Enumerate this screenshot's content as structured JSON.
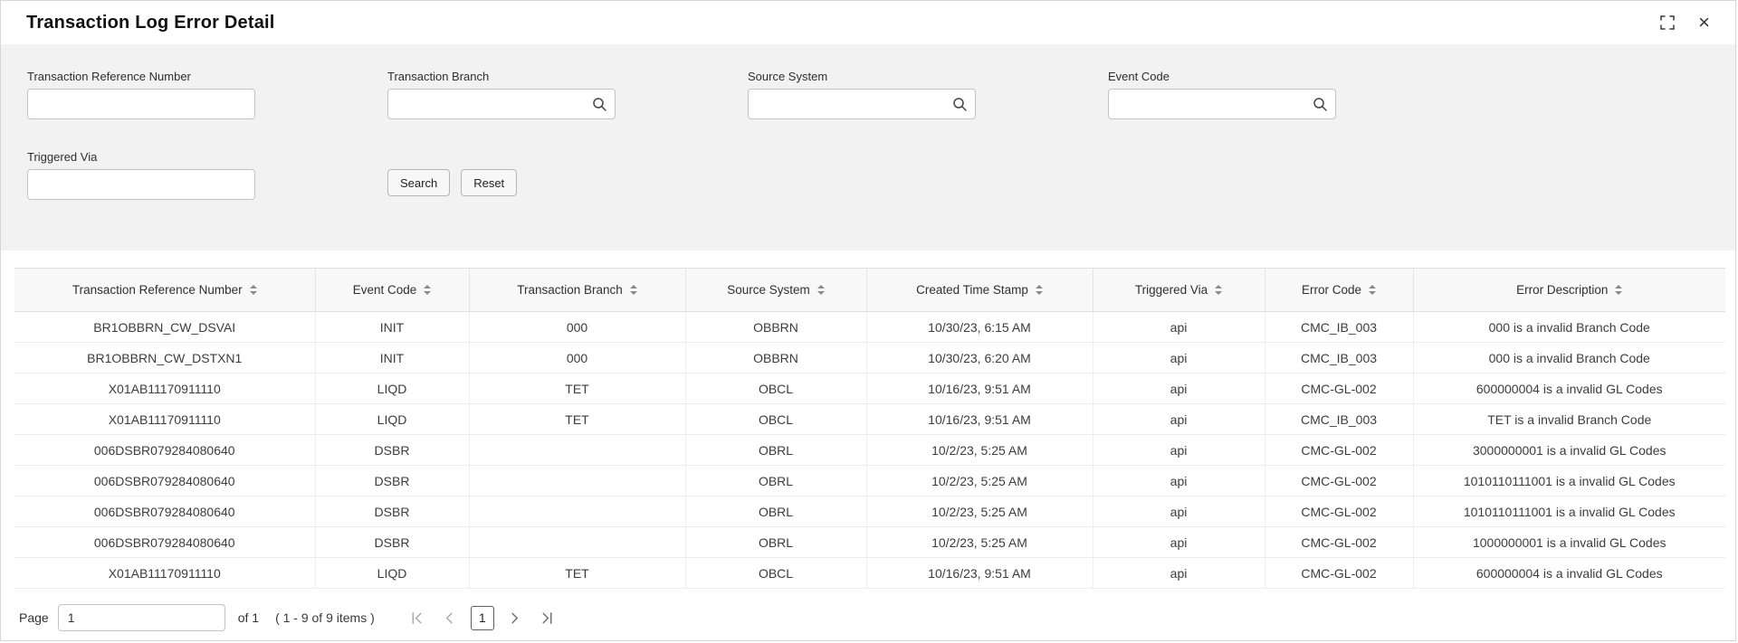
{
  "window": {
    "title": "Transaction Log Error Detail",
    "close_glyph": "×"
  },
  "filters": {
    "fields": [
      {
        "name": "transaction-reference-number-input",
        "label": "Transaction Reference Number",
        "value": "",
        "has_search_icon": false
      },
      {
        "name": "transaction-branch-input",
        "label": "Transaction Branch",
        "value": "",
        "has_search_icon": true
      },
      {
        "name": "source-system-input",
        "label": "Source System",
        "value": "",
        "has_search_icon": true
      },
      {
        "name": "event-code-input",
        "label": "Event Code",
        "value": "",
        "has_search_icon": true
      },
      {
        "name": "triggered-via-input",
        "label": "Triggered Via",
        "value": "",
        "has_search_icon": false
      }
    ],
    "search_label": "Search",
    "reset_label": "Reset"
  },
  "table": {
    "columns": [
      "Transaction Reference Number",
      "Event Code",
      "Transaction Branch",
      "Source System",
      "Created Time Stamp",
      "Triggered Via",
      "Error Code",
      "Error Description"
    ],
    "rows": [
      [
        "BR1OBBRN_CW_DSVAI",
        "INIT",
        "000",
        "OBBRN",
        "10/30/23, 6:15 AM",
        "api",
        "CMC_IB_003",
        "000 is a invalid Branch Code"
      ],
      [
        "BR1OBBRN_CW_DSTXN1",
        "INIT",
        "000",
        "OBBRN",
        "10/30/23, 6:20 AM",
        "api",
        "CMC_IB_003",
        "000 is a invalid Branch Code"
      ],
      [
        "X01AB11170911110",
        "LIQD",
        "TET",
        "OBCL",
        "10/16/23, 9:51 AM",
        "api",
        "CMC-GL-002",
        "600000004 is a invalid GL Codes"
      ],
      [
        "X01AB11170911110",
        "LIQD",
        "TET",
        "OBCL",
        "10/16/23, 9:51 AM",
        "api",
        "CMC_IB_003",
        "TET is a invalid Branch Code"
      ],
      [
        "006DSBR079284080640",
        "DSBR",
        "",
        "OBRL",
        "10/2/23, 5:25 AM",
        "api",
        "CMC-GL-002",
        "3000000001 is a invalid GL Codes"
      ],
      [
        "006DSBR079284080640",
        "DSBR",
        "",
        "OBRL",
        "10/2/23, 5:25 AM",
        "api",
        "CMC-GL-002",
        "1010110111001 is a invalid GL Codes"
      ],
      [
        "006DSBR079284080640",
        "DSBR",
        "",
        "OBRL",
        "10/2/23, 5:25 AM",
        "api",
        "CMC-GL-002",
        "1010110111001 is a invalid GL Codes"
      ],
      [
        "006DSBR079284080640",
        "DSBR",
        "",
        "OBRL",
        "10/2/23, 5:25 AM",
        "api",
        "CMC-GL-002",
        "1000000001 is a invalid GL Codes"
      ],
      [
        "X01AB11170911110",
        "LIQD",
        "TET",
        "OBCL",
        "10/16/23, 9:51 AM",
        "api",
        "CMC-GL-002",
        "600000004 is a invalid GL Codes"
      ]
    ]
  },
  "pagination": {
    "page_label": "Page",
    "page_value": "1",
    "of_label": "of 1",
    "items_label": "( 1 - 9 of 9 items )",
    "current_page": "1"
  }
}
